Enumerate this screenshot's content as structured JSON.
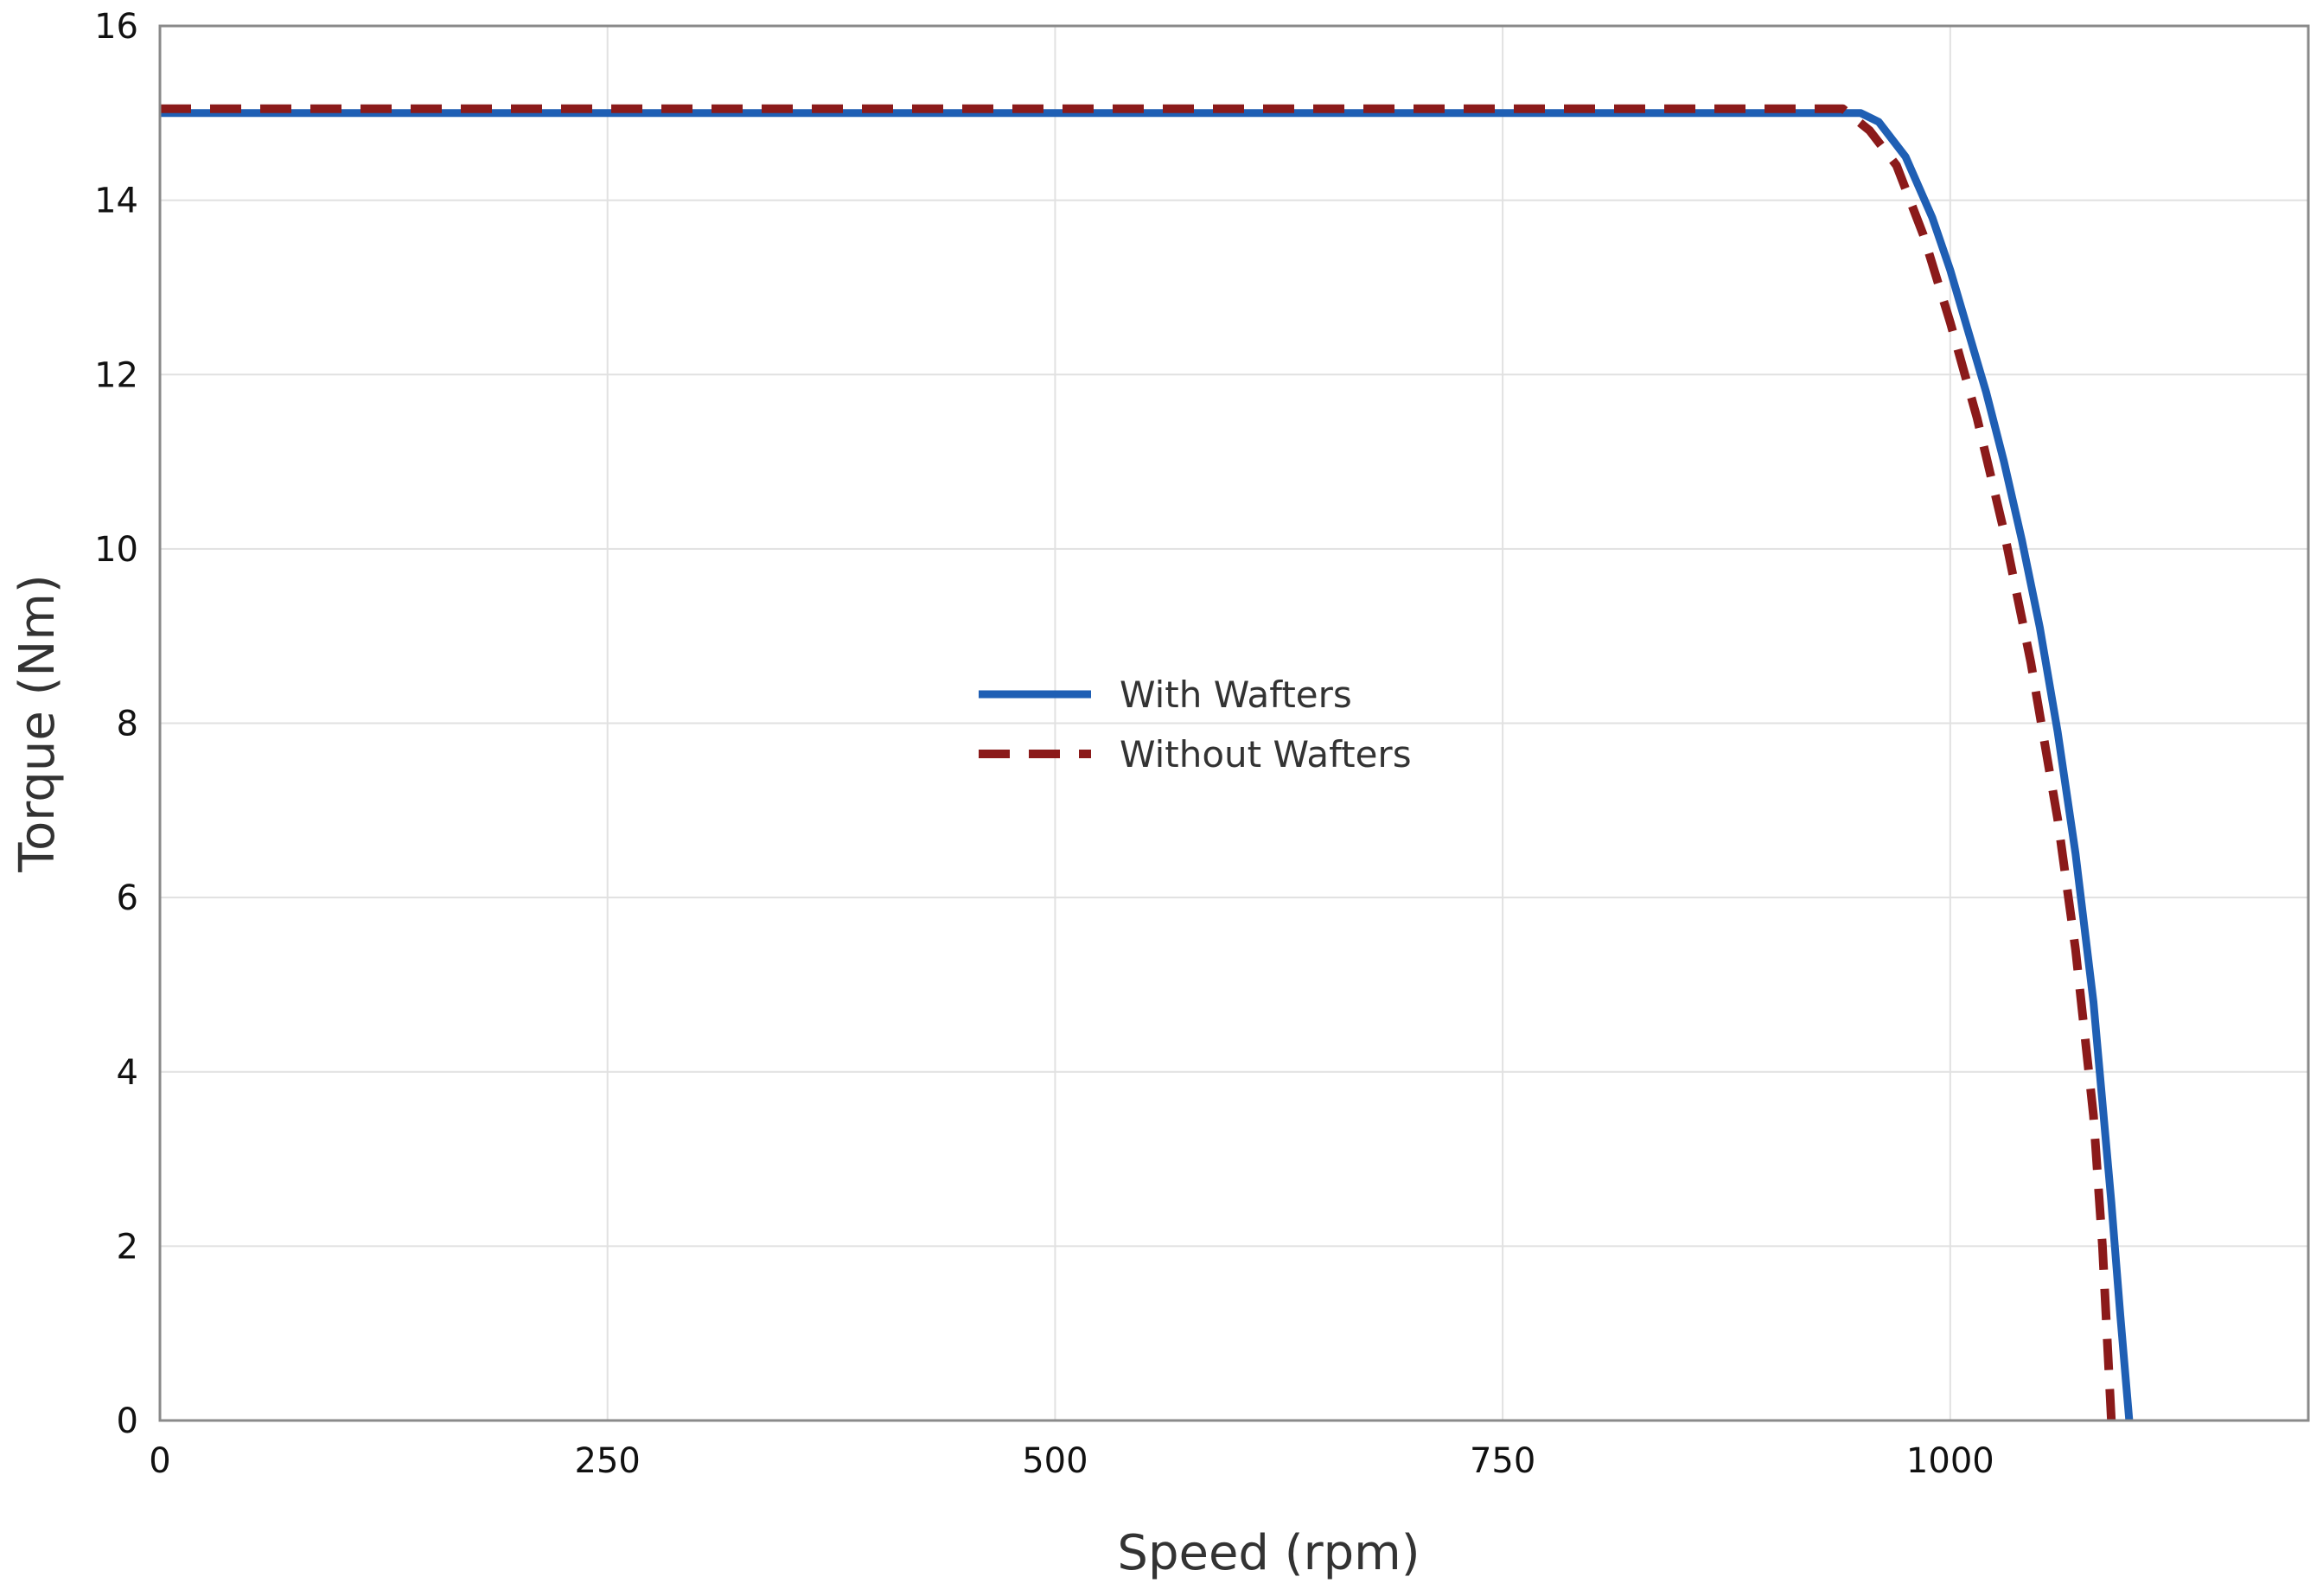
{
  "chart_data": {
    "type": "line",
    "title": "",
    "xlabel": "Speed (rpm)",
    "ylabel": "Torque (Nm)",
    "xlim": [
      0,
      1200
    ],
    "ylim": [
      0,
      16
    ],
    "xticks": [
      0,
      250,
      500,
      750,
      1000
    ],
    "yticks": [
      0,
      2,
      4,
      6,
      8,
      10,
      12,
      14,
      16
    ],
    "grid": true,
    "legend_position": "center",
    "series": [
      {
        "name": "With Wafters",
        "color": "#1f5fb4",
        "style": "solid",
        "x": [
          0,
          100,
          200,
          300,
          400,
          500,
          600,
          700,
          800,
          900,
          950,
          960,
          975,
          990,
          1000,
          1010,
          1020,
          1030,
          1040,
          1050,
          1060,
          1070,
          1080,
          1090,
          1095,
          1100
        ],
        "y": [
          15,
          15,
          15,
          15,
          15,
          15,
          15,
          15,
          15,
          15,
          15,
          14.9,
          14.5,
          13.8,
          13.2,
          12.5,
          11.8,
          11.0,
          10.1,
          9.1,
          7.9,
          6.5,
          4.8,
          2.5,
          1.2,
          0
        ]
      },
      {
        "name": "Without Wafters",
        "color": "#8b1a1a",
        "style": "dashed",
        "x": [
          0,
          100,
          200,
          300,
          400,
          500,
          600,
          700,
          800,
          900,
          940,
          955,
          970,
          985,
          1000,
          1015,
          1030,
          1045,
          1060,
          1070,
          1080,
          1085,
          1090
        ],
        "y": [
          15.05,
          15.05,
          15.05,
          15.05,
          15.05,
          15.05,
          15.05,
          15.05,
          15.05,
          15.05,
          15.05,
          14.8,
          14.4,
          13.6,
          12.6,
          11.5,
          10.2,
          8.7,
          6.9,
          5.4,
          3.5,
          2.0,
          0
        ]
      }
    ]
  }
}
